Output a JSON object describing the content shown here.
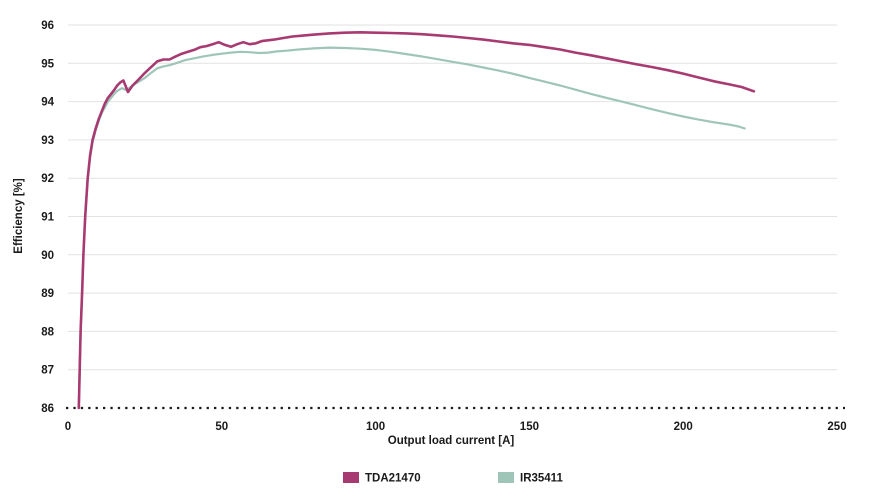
{
  "chart_data": {
    "type": "line",
    "title": "",
    "xlabel": "Output load current [A]",
    "ylabel": "Efficiency [%]",
    "xlim": [
      0,
      250
    ],
    "ylim": [
      86,
      96
    ],
    "x_ticks": [
      0,
      50,
      100,
      150,
      200,
      250
    ],
    "y_ticks": [
      86,
      87,
      88,
      89,
      90,
      91,
      92,
      93,
      94,
      95,
      96
    ],
    "grid": "horizontal-only",
    "gridline_color": "#e2e2e2",
    "baseline": {
      "y": 86,
      "style": "dotted",
      "color": "#1a1a1a"
    },
    "legend_position": "bottom-center",
    "series": [
      {
        "name": "TDA21470",
        "color": "#a83a72",
        "line_width": 2.6,
        "points": [
          [
            3.5,
            86.0
          ],
          [
            3.8,
            87.0
          ],
          [
            4.1,
            88.0
          ],
          [
            4.6,
            89.0
          ],
          [
            5.0,
            90.0
          ],
          [
            5.6,
            91.0
          ],
          [
            6.4,
            92.0
          ],
          [
            7.2,
            92.6
          ],
          [
            8.0,
            93.0
          ],
          [
            9.0,
            93.3
          ],
          [
            10,
            93.55
          ],
          [
            11,
            93.75
          ],
          [
            12,
            93.95
          ],
          [
            13,
            94.1
          ],
          [
            14,
            94.2
          ],
          [
            15,
            94.3
          ],
          [
            16,
            94.42
          ],
          [
            17,
            94.5
          ],
          [
            18,
            94.55
          ],
          [
            19.5,
            94.25
          ],
          [
            21,
            94.42
          ],
          [
            23,
            94.58
          ],
          [
            25,
            94.75
          ],
          [
            27,
            94.9
          ],
          [
            29,
            95.05
          ],
          [
            31,
            95.1
          ],
          [
            33,
            95.1
          ],
          [
            35,
            95.18
          ],
          [
            37,
            95.25
          ],
          [
            39,
            95.3
          ],
          [
            41,
            95.35
          ],
          [
            43,
            95.42
          ],
          [
            45,
            95.45
          ],
          [
            47,
            95.5
          ],
          [
            49,
            95.55
          ],
          [
            51,
            95.48
          ],
          [
            53,
            95.43
          ],
          [
            55,
            95.5
          ],
          [
            57,
            95.55
          ],
          [
            59,
            95.5
          ],
          [
            61,
            95.52
          ],
          [
            63,
            95.58
          ],
          [
            65,
            95.6
          ],
          [
            67,
            95.62
          ],
          [
            70,
            95.66
          ],
          [
            73,
            95.7
          ],
          [
            76,
            95.72
          ],
          [
            80,
            95.75
          ],
          [
            85,
            95.78
          ],
          [
            90,
            95.8
          ],
          [
            95,
            95.81
          ],
          [
            100,
            95.8
          ],
          [
            105,
            95.79
          ],
          [
            110,
            95.78
          ],
          [
            115,
            95.76
          ],
          [
            120,
            95.73
          ],
          [
            125,
            95.7
          ],
          [
            130,
            95.66
          ],
          [
            135,
            95.62
          ],
          [
            140,
            95.57
          ],
          [
            145,
            95.52
          ],
          [
            150,
            95.48
          ],
          [
            155,
            95.42
          ],
          [
            160,
            95.36
          ],
          [
            165,
            95.28
          ],
          [
            170,
            95.21
          ],
          [
            175,
            95.13
          ],
          [
            180,
            95.05
          ],
          [
            185,
            94.97
          ],
          [
            190,
            94.9
          ],
          [
            195,
            94.82
          ],
          [
            200,
            94.73
          ],
          [
            205,
            94.63
          ],
          [
            210,
            94.53
          ],
          [
            215,
            94.45
          ],
          [
            219,
            94.38
          ],
          [
            223,
            94.27
          ]
        ]
      },
      {
        "name": "IR35411",
        "color": "#9fc5b8",
        "line_width": 2.2,
        "points": [
          [
            3.5,
            86.0
          ],
          [
            3.8,
            87.0
          ],
          [
            4.1,
            88.0
          ],
          [
            4.6,
            89.0
          ],
          [
            5.0,
            90.0
          ],
          [
            5.6,
            91.0
          ],
          [
            6.4,
            92.0
          ],
          [
            7.2,
            92.55
          ],
          [
            8.0,
            92.95
          ],
          [
            9.0,
            93.25
          ],
          [
            10,
            93.5
          ],
          [
            11,
            93.7
          ],
          [
            12,
            93.85
          ],
          [
            13,
            94.0
          ],
          [
            14,
            94.1
          ],
          [
            15,
            94.2
          ],
          [
            16,
            94.28
          ],
          [
            17.5,
            94.35
          ],
          [
            19,
            94.3
          ],
          [
            21,
            94.42
          ],
          [
            23,
            94.52
          ],
          [
            25,
            94.62
          ],
          [
            27,
            94.75
          ],
          [
            29,
            94.87
          ],
          [
            31,
            94.92
          ],
          [
            33,
            94.95
          ],
          [
            35,
            95.0
          ],
          [
            38,
            95.08
          ],
          [
            41,
            95.13
          ],
          [
            44,
            95.18
          ],
          [
            47,
            95.22
          ],
          [
            50,
            95.25
          ],
          [
            53,
            95.28
          ],
          [
            56,
            95.3
          ],
          [
            59,
            95.29
          ],
          [
            62,
            95.27
          ],
          [
            65,
            95.28
          ],
          [
            68,
            95.31
          ],
          [
            71,
            95.33
          ],
          [
            75,
            95.36
          ],
          [
            80,
            95.39
          ],
          [
            85,
            95.41
          ],
          [
            90,
            95.4
          ],
          [
            95,
            95.38
          ],
          [
            100,
            95.35
          ],
          [
            105,
            95.3
          ],
          [
            110,
            95.24
          ],
          [
            115,
            95.18
          ],
          [
            120,
            95.11
          ],
          [
            125,
            95.04
          ],
          [
            130,
            94.97
          ],
          [
            135,
            94.89
          ],
          [
            140,
            94.81
          ],
          [
            145,
            94.72
          ],
          [
            150,
            94.62
          ],
          [
            155,
            94.52
          ],
          [
            160,
            94.42
          ],
          [
            165,
            94.31
          ],
          [
            170,
            94.2
          ],
          [
            175,
            94.1
          ],
          [
            180,
            94.0
          ],
          [
            185,
            93.9
          ],
          [
            190,
            93.8
          ],
          [
            195,
            93.7
          ],
          [
            200,
            93.61
          ],
          [
            205,
            93.53
          ],
          [
            210,
            93.46
          ],
          [
            215,
            93.4
          ],
          [
            218,
            93.35
          ],
          [
            220,
            93.3
          ]
        ]
      }
    ]
  }
}
